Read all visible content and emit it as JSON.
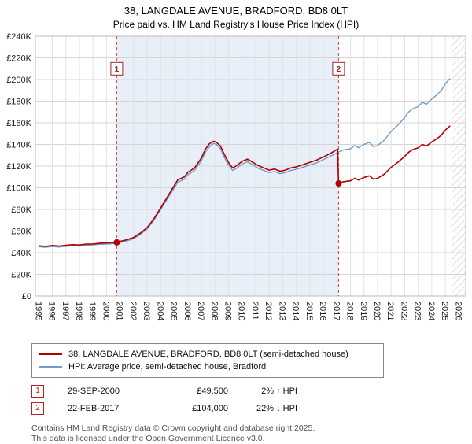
{
  "chart_data": {
    "type": "line",
    "title": "38, LANGDALE AVENUE, BRADFORD, BD8 0LT",
    "subtitle": "Price paid vs. HM Land Registry's House Price Index (HPI)",
    "xlabel": "",
    "ylabel": "",
    "x_range": [
      1994.75,
      2026.5
    ],
    "y_range": [
      0,
      240000
    ],
    "y_ticks": [
      0,
      20000,
      40000,
      60000,
      80000,
      100000,
      120000,
      140000,
      160000,
      180000,
      200000,
      220000,
      240000
    ],
    "x_ticks": [
      1995,
      1996,
      1997,
      1998,
      1999,
      2000,
      2001,
      2002,
      2003,
      2004,
      2005,
      2006,
      2007,
      2008,
      2009,
      2010,
      2011,
      2012,
      2013,
      2014,
      2015,
      2016,
      2017,
      2018,
      2019,
      2020,
      2021,
      2022,
      2023,
      2024,
      2025,
      2026
    ],
    "grid": true,
    "legend_position": "bottom",
    "shaded_region": [
      2000.75,
      2017.12
    ],
    "shaded_color": "#e9eff9",
    "hatch_region": [
      2025.5,
      2026.5
    ],
    "sales": [
      {
        "x": 2000.75,
        "y": 49500,
        "label": "1"
      },
      {
        "x": 2017.12,
        "y": 104000,
        "label": "2"
      }
    ],
    "legend": [
      {
        "label": "38, LANGDALE AVENUE, BRADFORD, BD8 0LT (semi-detached house)",
        "color": "#b00000"
      },
      {
        "label": "HPI: Average price, semi-detached house, Bradford",
        "color": "#6e9dc9"
      }
    ],
    "series": [
      {
        "name": "property-price",
        "color": "#b00000",
        "width": 1.6,
        "points": [
          [
            1995.0,
            46400
          ],
          [
            1995.5,
            45900
          ],
          [
            1996.0,
            46700
          ],
          [
            1996.5,
            46100
          ],
          [
            1997.0,
            46900
          ],
          [
            1997.5,
            47400
          ],
          [
            1998.0,
            47100
          ],
          [
            1998.5,
            47900
          ],
          [
            1999.0,
            48100
          ],
          [
            1999.5,
            48800
          ],
          [
            2000.0,
            49000
          ],
          [
            2000.75,
            49500
          ],
          [
            2001.0,
            50500
          ],
          [
            2001.5,
            52000
          ],
          [
            2002.0,
            54100
          ],
          [
            2002.5,
            58100
          ],
          [
            2003.0,
            63200
          ],
          [
            2003.5,
            71400
          ],
          [
            2004.0,
            81600
          ],
          [
            2004.5,
            91800
          ],
          [
            2005.0,
            102000
          ],
          [
            2005.25,
            107100
          ],
          [
            2005.75,
            110200
          ],
          [
            2006.0,
            114200
          ],
          [
            2006.5,
            118300
          ],
          [
            2007.0,
            127500
          ],
          [
            2007.3,
            135700
          ],
          [
            2007.6,
            140800
          ],
          [
            2007.9,
            143000
          ],
          [
            2008.1,
            142000
          ],
          [
            2008.4,
            138700
          ],
          [
            2008.7,
            130600
          ],
          [
            2009.0,
            123400
          ],
          [
            2009.3,
            118300
          ],
          [
            2009.6,
            120400
          ],
          [
            2010.0,
            124400
          ],
          [
            2010.4,
            126500
          ],
          [
            2010.8,
            123400
          ],
          [
            2011.2,
            120400
          ],
          [
            2011.6,
            118300
          ],
          [
            2012.0,
            116300
          ],
          [
            2012.4,
            117300
          ],
          [
            2012.8,
            115300
          ],
          [
            2013.2,
            116300
          ],
          [
            2013.6,
            118300
          ],
          [
            2014.0,
            119300
          ],
          [
            2014.5,
            121400
          ],
          [
            2015.0,
            123400
          ],
          [
            2015.5,
            125500
          ],
          [
            2016.0,
            128500
          ],
          [
            2016.5,
            131600
          ],
          [
            2017.05,
            135700
          ],
          [
            2017.12,
            104000
          ],
          [
            2017.5,
            105600
          ],
          [
            2018.0,
            106400
          ],
          [
            2018.3,
            108700
          ],
          [
            2018.6,
            107100
          ],
          [
            2019.0,
            109500
          ],
          [
            2019.4,
            111000
          ],
          [
            2019.7,
            107900
          ],
          [
            2020.0,
            108700
          ],
          [
            2020.5,
            112600
          ],
          [
            2021.0,
            118900
          ],
          [
            2021.5,
            123600
          ],
          [
            2022.0,
            129000
          ],
          [
            2022.3,
            132900
          ],
          [
            2022.6,
            135300
          ],
          [
            2023.0,
            136900
          ],
          [
            2023.3,
            140000
          ],
          [
            2023.6,
            138400
          ],
          [
            2024.0,
            142300
          ],
          [
            2024.4,
            145500
          ],
          [
            2024.7,
            148600
          ],
          [
            2025.0,
            153300
          ],
          [
            2025.2,
            155600
          ],
          [
            2025.35,
            157200
          ]
        ]
      },
      {
        "name": "hpi-average",
        "color": "#6e9dc9",
        "width": 1.4,
        "points": [
          [
            1995.0,
            45500
          ],
          [
            1995.5,
            45000
          ],
          [
            1996.0,
            45800
          ],
          [
            1996.5,
            45200
          ],
          [
            1997.0,
            46000
          ],
          [
            1997.5,
            46500
          ],
          [
            1998.0,
            46200
          ],
          [
            1998.5,
            47000
          ],
          [
            1999.0,
            47200
          ],
          [
            1999.5,
            47800
          ],
          [
            2000.0,
            48000
          ],
          [
            2000.75,
            48500
          ],
          [
            2001.0,
            49500
          ],
          [
            2001.5,
            51000
          ],
          [
            2002.0,
            53000
          ],
          [
            2002.5,
            57000
          ],
          [
            2003.0,
            62000
          ],
          [
            2003.5,
            70000
          ],
          [
            2004.0,
            80000
          ],
          [
            2004.5,
            90000
          ],
          [
            2005.0,
            100000
          ],
          [
            2005.25,
            105000
          ],
          [
            2005.75,
            108000
          ],
          [
            2006.0,
            112000
          ],
          [
            2006.5,
            116000
          ],
          [
            2007.0,
            125000
          ],
          [
            2007.3,
            133000
          ],
          [
            2007.6,
            138000
          ],
          [
            2007.9,
            141000
          ],
          [
            2008.1,
            140000
          ],
          [
            2008.4,
            136000
          ],
          [
            2008.7,
            128000
          ],
          [
            2009.0,
            121000
          ],
          [
            2009.3,
            116000
          ],
          [
            2009.6,
            118000
          ],
          [
            2010.0,
            122000
          ],
          [
            2010.4,
            124000
          ],
          [
            2010.8,
            121000
          ],
          [
            2011.2,
            118000
          ],
          [
            2011.6,
            116000
          ],
          [
            2012.0,
            114000
          ],
          [
            2012.4,
            115000
          ],
          [
            2012.8,
            113000
          ],
          [
            2013.2,
            114000
          ],
          [
            2013.6,
            116000
          ],
          [
            2014.0,
            117000
          ],
          [
            2014.5,
            119000
          ],
          [
            2015.0,
            121000
          ],
          [
            2015.5,
            123000
          ],
          [
            2016.0,
            126000
          ],
          [
            2016.5,
            129000
          ],
          [
            2017.12,
            133000
          ],
          [
            2017.5,
            135000
          ],
          [
            2018.0,
            136000
          ],
          [
            2018.3,
            139000
          ],
          [
            2018.6,
            137000
          ],
          [
            2019.0,
            140000
          ],
          [
            2019.4,
            142000
          ],
          [
            2019.7,
            138000
          ],
          [
            2020.0,
            139000
          ],
          [
            2020.5,
            144000
          ],
          [
            2021.0,
            152000
          ],
          [
            2021.5,
            158000
          ],
          [
            2022.0,
            165000
          ],
          [
            2022.3,
            170000
          ],
          [
            2022.6,
            173000
          ],
          [
            2023.0,
            175000
          ],
          [
            2023.3,
            179000
          ],
          [
            2023.6,
            177000
          ],
          [
            2024.0,
            182000
          ],
          [
            2024.4,
            186000
          ],
          [
            2024.7,
            190000
          ],
          [
            2025.0,
            196000
          ],
          [
            2025.2,
            199000
          ],
          [
            2025.35,
            201000
          ]
        ]
      }
    ]
  },
  "sales_table": [
    {
      "num": "1",
      "date": "29-SEP-2000",
      "price": "£49,500",
      "hpi": "2% ↑ HPI"
    },
    {
      "num": "2",
      "date": "22-FEB-2017",
      "price": "£104,000",
      "hpi": "22% ↓ HPI"
    }
  ],
  "footer": {
    "line1": "Contains HM Land Registry data © Crown copyright and database right 2025.",
    "line2": "This data is licensed under the Open Government Licence v3.0."
  }
}
